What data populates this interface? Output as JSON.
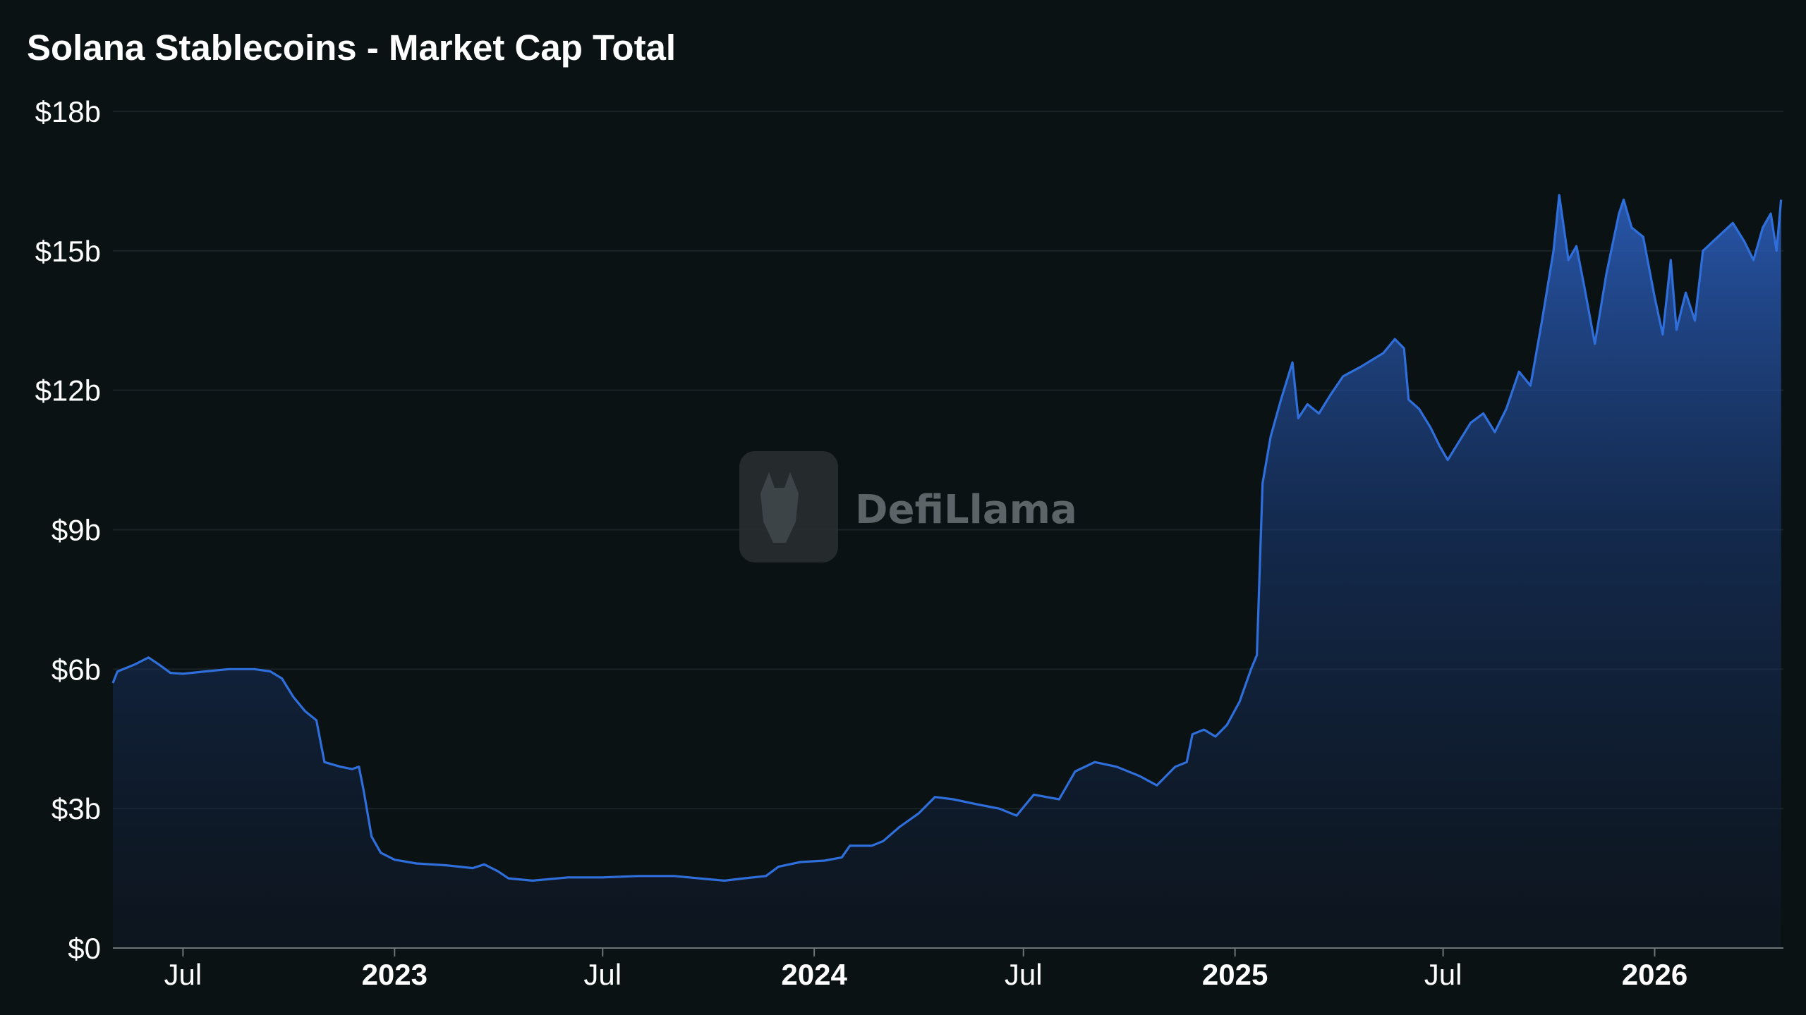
{
  "chart_data": {
    "type": "area",
    "title": "Solana Stablecoins - Market Cap Total",
    "xlabel": "",
    "ylabel": "",
    "ylim": [
      0,
      18
    ],
    "y_unit": "billion USD",
    "xlim": [
      "2022-05-01",
      "2026-04-23"
    ],
    "y_ticks": [
      {
        "value": 0,
        "label": "$0"
      },
      {
        "value": 3,
        "label": "$3b"
      },
      {
        "value": 6,
        "label": "$6b"
      },
      {
        "value": 9,
        "label": "$9b"
      },
      {
        "value": 12,
        "label": "$12b"
      },
      {
        "value": 15,
        "label": "$15b"
      },
      {
        "value": 18,
        "label": "$18b"
      }
    ],
    "x_ticks": [
      {
        "date": "2022-07-01",
        "label": "Jul",
        "year": false
      },
      {
        "date": "2023-01-01",
        "label": "2023",
        "year": true
      },
      {
        "date": "2023-07-01",
        "label": "Jul",
        "year": false
      },
      {
        "date": "2024-01-01",
        "label": "2024",
        "year": true
      },
      {
        "date": "2024-07-01",
        "label": "Jul",
        "year": false
      },
      {
        "date": "2025-01-01",
        "label": "2025",
        "year": true
      },
      {
        "date": "2025-07-01",
        "label": "Jul",
        "year": false
      },
      {
        "date": "2026-01-01",
        "label": "2026",
        "year": true
      }
    ],
    "grid": true,
    "legend": "none",
    "series": [
      {
        "color": "#2f6fdc",
        "points": [
          [
            "2022-05-01",
            5.7
          ],
          [
            "2022-05-05",
            5.95
          ],
          [
            "2022-05-20",
            6.1
          ],
          [
            "2022-06-01",
            6.25
          ],
          [
            "2022-06-10",
            6.1
          ],
          [
            "2022-06-20",
            5.92
          ],
          [
            "2022-07-01",
            5.9
          ],
          [
            "2022-07-20",
            5.95
          ],
          [
            "2022-08-10",
            6.0
          ],
          [
            "2022-09-01",
            6.0
          ],
          [
            "2022-09-15",
            5.95
          ],
          [
            "2022-09-25",
            5.8
          ],
          [
            "2022-10-05",
            5.4
          ],
          [
            "2022-10-15",
            5.1
          ],
          [
            "2022-10-25",
            4.9
          ],
          [
            "2022-11-01",
            4.0
          ],
          [
            "2022-11-15",
            3.9
          ],
          [
            "2022-11-25",
            3.85
          ],
          [
            "2022-12-01",
            3.9
          ],
          [
            "2022-12-05",
            3.4
          ],
          [
            "2022-12-12",
            2.4
          ],
          [
            "2022-12-20",
            2.05
          ],
          [
            "2023-01-01",
            1.9
          ],
          [
            "2023-01-20",
            1.82
          ],
          [
            "2023-02-15",
            1.78
          ],
          [
            "2023-03-10",
            1.72
          ],
          [
            "2023-03-20",
            1.8
          ],
          [
            "2023-04-01",
            1.65
          ],
          [
            "2023-04-10",
            1.5
          ],
          [
            "2023-05-01",
            1.45
          ],
          [
            "2023-06-01",
            1.52
          ],
          [
            "2023-07-01",
            1.52
          ],
          [
            "2023-08-01",
            1.55
          ],
          [
            "2023-09-01",
            1.55
          ],
          [
            "2023-10-01",
            1.48
          ],
          [
            "2023-10-15",
            1.45
          ],
          [
            "2023-11-01",
            1.5
          ],
          [
            "2023-11-20",
            1.55
          ],
          [
            "2023-12-01",
            1.75
          ],
          [
            "2023-12-20",
            1.85
          ],
          [
            "2024-01-10",
            1.88
          ],
          [
            "2024-01-25",
            1.95
          ],
          [
            "2024-02-01",
            2.2
          ],
          [
            "2024-02-20",
            2.2
          ],
          [
            "2024-03-01",
            2.3
          ],
          [
            "2024-03-15",
            2.6
          ],
          [
            "2024-04-01",
            2.9
          ],
          [
            "2024-04-15",
            3.25
          ],
          [
            "2024-05-01",
            3.2
          ],
          [
            "2024-05-20",
            3.1
          ],
          [
            "2024-06-10",
            3.0
          ],
          [
            "2024-06-25",
            2.85
          ],
          [
            "2024-07-10",
            3.3
          ],
          [
            "2024-08-01",
            3.2
          ],
          [
            "2024-08-15",
            3.8
          ],
          [
            "2024-09-01",
            4.0
          ],
          [
            "2024-09-20",
            3.9
          ],
          [
            "2024-10-10",
            3.7
          ],
          [
            "2024-10-25",
            3.5
          ],
          [
            "2024-11-10",
            3.9
          ],
          [
            "2024-11-20",
            4.0
          ],
          [
            "2024-11-25",
            4.6
          ],
          [
            "2024-12-05",
            4.7
          ],
          [
            "2024-12-15",
            4.55
          ],
          [
            "2024-12-25",
            4.8
          ],
          [
            "2025-01-05",
            5.3
          ],
          [
            "2025-01-15",
            6.0
          ],
          [
            "2025-01-20",
            6.3
          ],
          [
            "2025-01-25",
            10.0
          ],
          [
            "2025-02-01",
            11.0
          ],
          [
            "2025-02-10",
            11.8
          ],
          [
            "2025-02-20",
            12.6
          ],
          [
            "2025-02-25",
            11.4
          ],
          [
            "2025-03-05",
            11.7
          ],
          [
            "2025-03-15",
            11.5
          ],
          [
            "2025-03-25",
            11.9
          ],
          [
            "2025-04-05",
            12.3
          ],
          [
            "2025-04-20",
            12.5
          ],
          [
            "2025-05-10",
            12.8
          ],
          [
            "2025-05-20",
            13.1
          ],
          [
            "2025-05-28",
            12.9
          ],
          [
            "2025-06-01",
            11.8
          ],
          [
            "2025-06-10",
            11.6
          ],
          [
            "2025-06-20",
            11.2
          ],
          [
            "2025-06-28",
            10.8
          ],
          [
            "2025-07-05",
            10.5
          ],
          [
            "2025-07-15",
            10.9
          ],
          [
            "2025-07-25",
            11.3
          ],
          [
            "2025-08-05",
            11.5
          ],
          [
            "2025-08-15",
            11.1
          ],
          [
            "2025-08-25",
            11.6
          ],
          [
            "2025-09-05",
            12.4
          ],
          [
            "2025-09-15",
            12.1
          ],
          [
            "2025-09-25",
            13.5
          ],
          [
            "2025-10-05",
            15.0
          ],
          [
            "2025-10-10",
            16.2
          ],
          [
            "2025-10-18",
            14.8
          ],
          [
            "2025-10-25",
            15.1
          ],
          [
            "2025-11-01",
            14.2
          ],
          [
            "2025-11-10",
            13.0
          ],
          [
            "2025-11-20",
            14.5
          ],
          [
            "2025-12-01",
            15.8
          ],
          [
            "2025-12-05",
            16.1
          ],
          [
            "2025-12-12",
            15.5
          ],
          [
            "2025-12-22",
            15.3
          ],
          [
            "2026-01-01",
            14.0
          ],
          [
            "2026-01-08",
            13.2
          ],
          [
            "2026-01-15",
            14.8
          ],
          [
            "2026-01-20",
            13.3
          ],
          [
            "2026-01-28",
            14.1
          ],
          [
            "2026-02-05",
            13.5
          ],
          [
            "2026-02-12",
            15.0
          ],
          [
            "2026-02-25",
            15.3
          ],
          [
            "2026-03-10",
            15.6
          ],
          [
            "2026-03-20",
            15.2
          ],
          [
            "2026-03-28",
            14.8
          ],
          [
            "2026-04-05",
            15.5
          ],
          [
            "2026-04-12",
            15.8
          ],
          [
            "2026-04-17",
            15.0
          ],
          [
            "2026-04-21",
            16.1
          ]
        ]
      }
    ]
  },
  "watermark": {
    "text": "DefiLlama"
  }
}
